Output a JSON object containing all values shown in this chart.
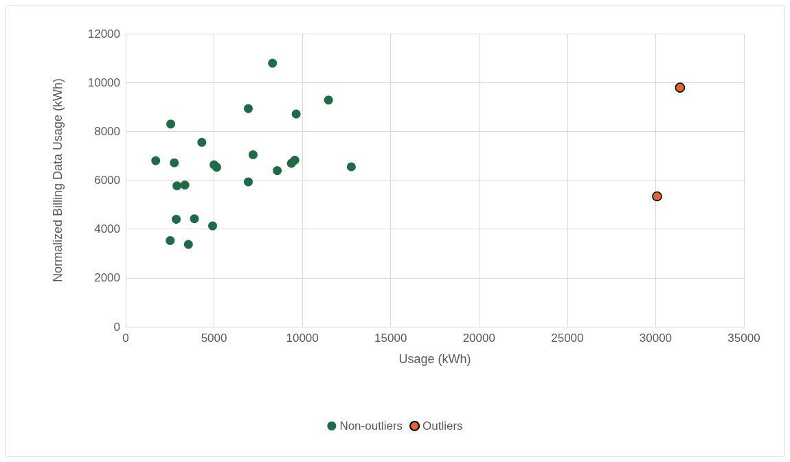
{
  "chart_data": {
    "type": "scatter",
    "xlabel": "Usage (kWh)",
    "ylabel": "Normalized Billing Data Usage (kWh)",
    "xlim": [
      0,
      35000
    ],
    "xticks": [
      0,
      5000,
      10000,
      15000,
      20000,
      25000,
      30000,
      35000
    ],
    "ylim": [
      0,
      12000
    ],
    "yticks": [
      0,
      2000,
      4000,
      6000,
      8000,
      10000,
      12000
    ],
    "grid": true,
    "legend": "bottom",
    "marker": "circle",
    "series": [
      {
        "name": "Non-outliers",
        "color": "#1e6b45",
        "x": [
          1700,
          2550,
          2520,
          2750,
          2900,
          2860,
          3350,
          3550,
          3890,
          4310,
          4920,
          5000,
          5150,
          6940,
          6940,
          7210,
          8310,
          8580,
          9380,
          9570,
          9650,
          11480,
          12770
        ],
        "values": [
          6800,
          8300,
          3530,
          6710,
          5770,
          4400,
          5800,
          3370,
          4420,
          7550,
          4130,
          6630,
          6530,
          8930,
          5930,
          7040,
          10790,
          6390,
          6690,
          6820,
          8710,
          9280,
          6550
        ]
      },
      {
        "name": "Outliers",
        "color": "#e0652c",
        "x": [
          31380,
          30080
        ],
        "values": [
          9790,
          5340
        ]
      }
    ]
  }
}
